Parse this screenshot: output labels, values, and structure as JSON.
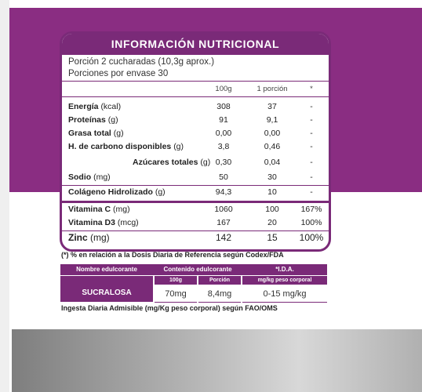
{
  "panel": {
    "title": "INFORMACIÓN NUTRICIONAL",
    "portion": "Porción  2 cucharadas (10,3g aprox.)",
    "portions_per_container": "Porciones por envase 30",
    "col_headers": [
      "100g",
      "1 porción",
      "*"
    ],
    "rows": [
      {
        "label": "Energía",
        "unit": "(kcal)",
        "v100": "308",
        "vportion": "37",
        "ida": "-"
      },
      {
        "label": "Proteínas",
        "unit": "(g)",
        "v100": "91",
        "vportion": "9,1",
        "ida": "-"
      },
      {
        "label": "Grasa total",
        "unit": "(g)",
        "v100": "0,00",
        "vportion": "0,00",
        "ida": "-"
      },
      {
        "label": "H. de carbono disponibles",
        "unit": "(g)",
        "v100": "3,8",
        "vportion": "0,46",
        "ida": "-"
      },
      {
        "label": "Azúcares totales",
        "unit": "(g)",
        "v100": "0,30",
        "vportion": "0,04",
        "ida": "-"
      },
      {
        "label": "Sodio",
        "unit": "(mg)",
        "v100": "50",
        "vportion": "30",
        "ida": "-"
      },
      {
        "label": "Colágeno Hidrolizado",
        "unit": "(g)",
        "v100": "94,3",
        "vportion": "10",
        "ida": "-"
      },
      {
        "label": "Vitamina C",
        "unit": "(mg)",
        "v100": "1060",
        "vportion": "100",
        "ida": "167%"
      },
      {
        "label": "Vitamina D3",
        "unit": "(mcg)",
        "v100": "167",
        "vportion": "20",
        "ida": "100%"
      },
      {
        "label": "Zinc",
        "unit": "(mg)",
        "v100": "142",
        "vportion": "15",
        "ida": "100%"
      }
    ]
  },
  "footnote": "(*) % en relación a la Dosis Diaria de Referencia según Codex/FDA",
  "sweetener": {
    "h_name": "Nombre edulcorante",
    "h_content": "Contenido edulcorante",
    "h_ida": "*I.D.A.",
    "sub_100g": "100g",
    "sub_portion": "Porción",
    "sub_ida": "mg/kg peso corporal",
    "name": "SUCRALOSA",
    "v100": "70mg",
    "vportion": "8,4mg",
    "ida": "0-15 mg/kg"
  },
  "note": "Ingesta Diaria Admisible (mg/Kg peso corporal) según FAO/OMS",
  "colors": {
    "brand_purple": "#7a2a78",
    "band_purple": "#8a2d82"
  }
}
